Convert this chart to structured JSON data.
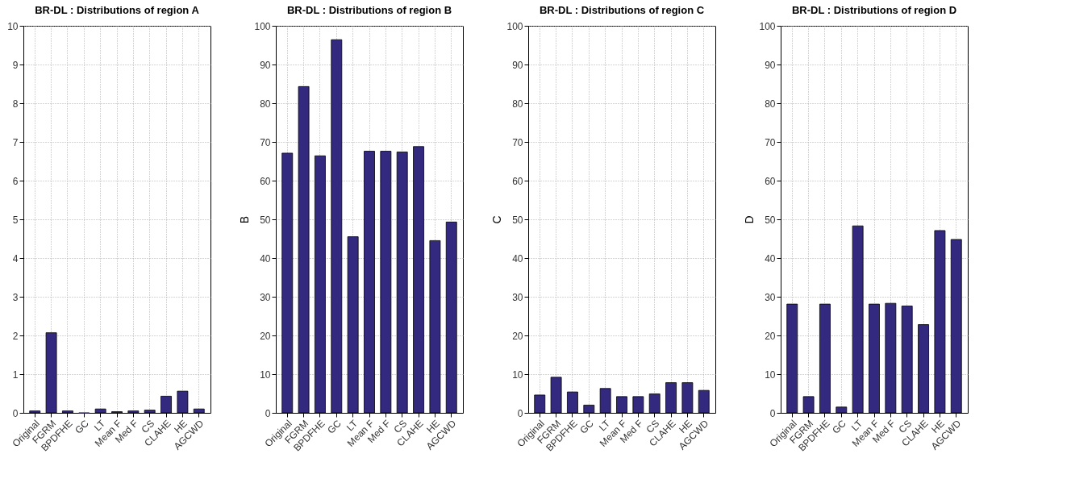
{
  "chart_data": [
    {
      "type": "bar",
      "title": "BR-DL :  Distributions of region A",
      "categories": [
        "Original",
        "FGRM",
        "BPDFHE",
        "GC",
        "LT",
        "Mean F",
        "Med F",
        "CS",
        "CLAHE",
        "HE",
        "AGCWD"
      ],
      "values": [
        0.05,
        2.07,
        0.05,
        0,
        0.1,
        0.03,
        0.05,
        0.07,
        0.43,
        0.56,
        0.1
      ],
      "color": "#33297f",
      "ylim": [
        0,
        10
      ],
      "yticks": [
        0,
        1,
        2,
        3,
        4,
        5,
        6,
        7,
        8,
        9,
        10
      ],
      "grid": true
    },
    {
      "type": "bar",
      "title": "BR-DL : Distributions of region B",
      "ylabel": "B",
      "categories": [
        "Original",
        "FGRM",
        "BPDFHE",
        "GC",
        "LT",
        "Mean F",
        "Med F",
        "CS",
        "CLAHE",
        "HE",
        "AGCWD"
      ],
      "values": [
        67.1,
        84.3,
        66.4,
        96.4,
        45.5,
        67.6,
        67.6,
        67.4,
        68.8,
        44.5,
        49.3
      ],
      "color": "#33297f",
      "ylim": [
        0,
        100
      ],
      "yticks": [
        0,
        10,
        20,
        30,
        40,
        50,
        60,
        70,
        80,
        90,
        100
      ],
      "grid": true
    },
    {
      "type": "bar",
      "title": "BR-DL :  Distributions of region C",
      "ylabel": "C",
      "categories": [
        "Original",
        "FGRM",
        "BPDFHE",
        "GC",
        "LT",
        "Mean F",
        "Med F",
        "CS",
        "CLAHE",
        "HE",
        "AGCWD"
      ],
      "values": [
        4.6,
        9.2,
        5.4,
        2.0,
        6.3,
        4.2,
        4.2,
        4.9,
        7.8,
        7.8,
        5.8
      ],
      "color": "#33297f",
      "ylim": [
        0,
        100
      ],
      "yticks": [
        0,
        10,
        20,
        30,
        40,
        50,
        60,
        70,
        80,
        90,
        100
      ],
      "grid": true
    },
    {
      "type": "bar",
      "title": "BR-DL :  Distributions of region D",
      "ylabel": "D",
      "categories": [
        "Original",
        "FGRM",
        "BPDFHE",
        "GC",
        "LT",
        "Mean F",
        "Med F",
        "CS",
        "CLAHE",
        "HE",
        "AGCWD"
      ],
      "values": [
        28.1,
        4.2,
        28.1,
        1.5,
        48.3,
        28.1,
        28.3,
        27.6,
        22.8,
        47.1,
        44.8
      ],
      "color": "#33297f",
      "ylim": [
        0,
        100
      ],
      "yticks": [
        0,
        10,
        20,
        30,
        40,
        50,
        60,
        70,
        80,
        90,
        100
      ],
      "grid": true
    }
  ]
}
